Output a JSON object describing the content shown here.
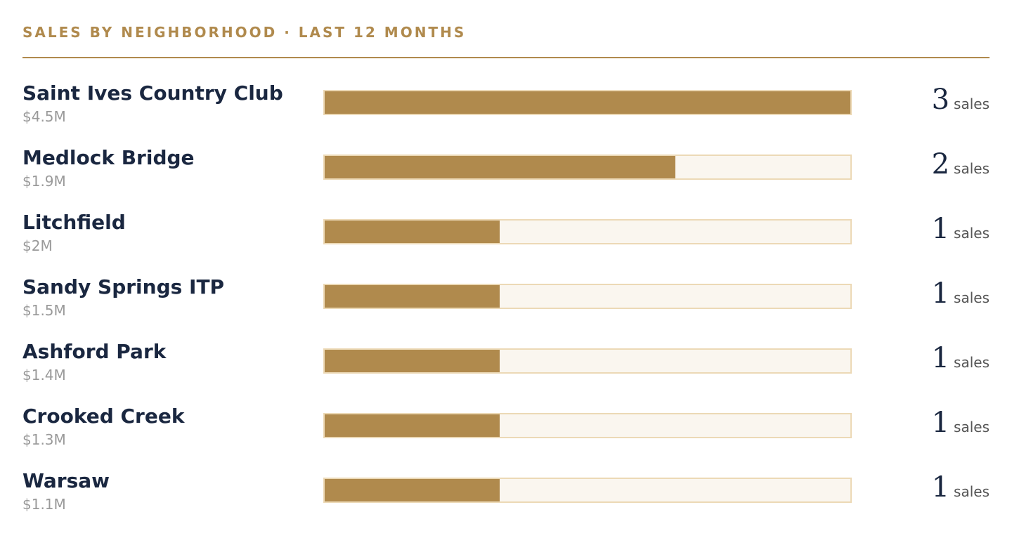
{
  "title": "SALES BY NEIGHBORHOOD · LAST 12 MONTHS",
  "colors": {
    "accent": "#b08a4d",
    "track": "#faf6ef",
    "track_border": "#ecd9b6",
    "text": "#1a2740",
    "muted": "#9a9a9a"
  },
  "chart_data": {
    "type": "bar",
    "orientation": "horizontal",
    "title": "SALES BY NEIGHBORHOOD · LAST 12 MONTHS",
    "xlim": [
      0,
      3
    ],
    "grid": false,
    "value_unit": "sales",
    "rows": [
      {
        "name": "Saint Ives Country Club",
        "volume": "$4.5M",
        "count": 3
      },
      {
        "name": "Medlock Bridge",
        "volume": "$1.9M",
        "count": 2
      },
      {
        "name": "Litchfield",
        "volume": "$2M",
        "count": 1
      },
      {
        "name": "Sandy Springs ITP",
        "volume": "$1.5M",
        "count": 1
      },
      {
        "name": "Ashford Park",
        "volume": "$1.4M",
        "count": 1
      },
      {
        "name": "Crooked Creek",
        "volume": "$1.3M",
        "count": 1
      },
      {
        "name": "Warsaw",
        "volume": "$1.1M",
        "count": 1
      }
    ]
  }
}
